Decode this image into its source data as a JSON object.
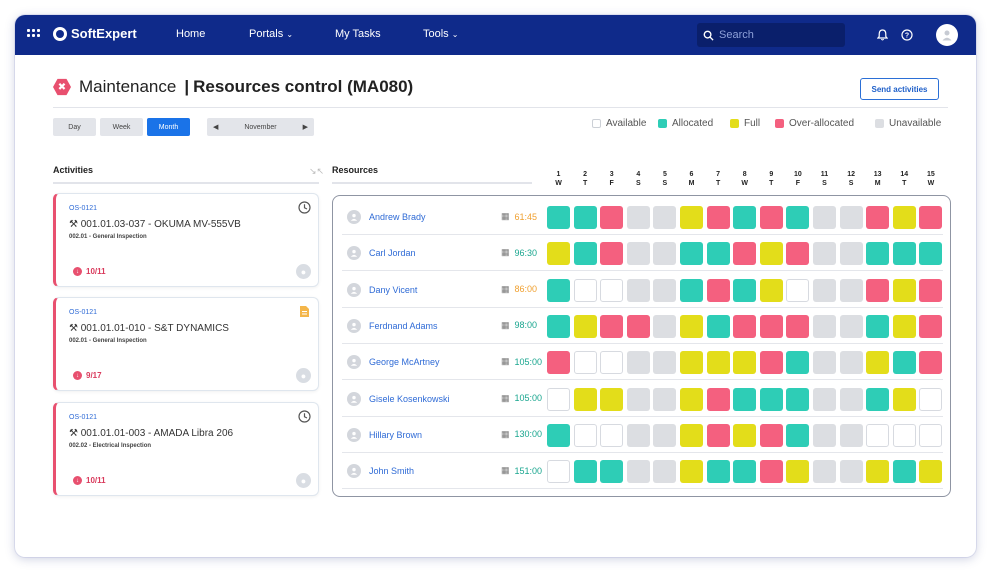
{
  "app": {
    "name": "SoftExpert",
    "nav": [
      {
        "label": "Home",
        "caret": false
      },
      {
        "label": "Portals",
        "caret": true
      },
      {
        "label": "My Tasks",
        "caret": false
      },
      {
        "label": "Tools",
        "caret": true
      }
    ],
    "search_placeholder": "Search"
  },
  "page": {
    "module": "Maintenance",
    "separator": "|",
    "title": "Resources control (MA080)",
    "send_button": "Send activities"
  },
  "view": {
    "segments": [
      {
        "label": "Day",
        "active": false
      },
      {
        "label": "Week",
        "active": false
      },
      {
        "label": "Month",
        "active": true
      }
    ],
    "month": "November"
  },
  "legend": [
    {
      "label": "Available",
      "color": "#ffffff"
    },
    {
      "label": "Allocated",
      "color": "#2ecdb6"
    },
    {
      "label": "Full",
      "color": "#e3dd1a"
    },
    {
      "label": "Over-allocated",
      "color": "#f4607f"
    },
    {
      "label": "Unavailable",
      "color": "#dcdee2"
    }
  ],
  "colors": {
    "A": "#ffffff",
    "G": "#2ecdb6",
    "Y": "#e3dd1a",
    "P": "#f4607f",
    "U": "#dcdee2",
    "hours_orange": "#f0a030",
    "hours_teal": "#1aa68f"
  },
  "activities": {
    "title": "Activities",
    "items": [
      {
        "os": "OS-0121",
        "code": "001.01.03-037 - OKUMA MV-555VB",
        "sub": "002.01 - General Inspection",
        "due": "10/11",
        "status_icon": "clock-icon"
      },
      {
        "os": "OS-0121",
        "code": "001.01.01-010 - S&T DYNAMICS",
        "sub": "002.01 - General Inspection",
        "due": "9/17",
        "status_icon": "document-icon"
      },
      {
        "os": "OS-0121",
        "code": "001.01.01-003 - AMADA Libra 206",
        "sub": "002.02 - Electrical Inspection",
        "due": "10/11",
        "status_icon": "clock-icon"
      }
    ]
  },
  "resources": {
    "title": "Resources",
    "days": [
      {
        "n": "1",
        "d": "W"
      },
      {
        "n": "2",
        "d": "T"
      },
      {
        "n": "3",
        "d": "F"
      },
      {
        "n": "4",
        "d": "S"
      },
      {
        "n": "5",
        "d": "S"
      },
      {
        "n": "6",
        "d": "M"
      },
      {
        "n": "7",
        "d": "T"
      },
      {
        "n": "8",
        "d": "W"
      },
      {
        "n": "9",
        "d": "T"
      },
      {
        "n": "10",
        "d": "F"
      },
      {
        "n": "11",
        "d": "S"
      },
      {
        "n": "12",
        "d": "S"
      },
      {
        "n": "13",
        "d": "M"
      },
      {
        "n": "14",
        "d": "T"
      },
      {
        "n": "15",
        "d": "W"
      }
    ],
    "people": [
      {
        "name": "Andrew Brady",
        "hours": "61:45",
        "hours_status": "orange",
        "cells": [
          "G",
          "G",
          "P",
          "U",
          "U",
          "Y",
          "P",
          "G",
          "P",
          "G",
          "U",
          "U",
          "P",
          "Y",
          "P"
        ]
      },
      {
        "name": "Carl Jordan",
        "hours": "96:30",
        "hours_status": "teal",
        "cells": [
          "Y",
          "G",
          "P",
          "U",
          "U",
          "G",
          "G",
          "P",
          "Y",
          "P",
          "U",
          "U",
          "G",
          "G",
          "G"
        ]
      },
      {
        "name": "Dany Vicent",
        "hours": "86:00",
        "hours_status": "orange",
        "cells": [
          "G",
          "A",
          "A",
          "U",
          "U",
          "G",
          "P",
          "G",
          "Y",
          "A",
          "U",
          "U",
          "P",
          "Y",
          "P"
        ]
      },
      {
        "name": "Ferdnand Adams",
        "hours": "98:00",
        "hours_status": "teal",
        "cells": [
          "G",
          "Y",
          "P",
          "P",
          "U",
          "Y",
          "G",
          "P",
          "P",
          "P",
          "U",
          "U",
          "G",
          "Y",
          "P"
        ]
      },
      {
        "name": "George McArtney",
        "hours": "105:00",
        "hours_status": "teal",
        "cells": [
          "P",
          "A",
          "A",
          "U",
          "U",
          "Y",
          "Y",
          "Y",
          "P",
          "G",
          "U",
          "U",
          "Y",
          "G",
          "P"
        ]
      },
      {
        "name": "Gisele Kosenkowski",
        "hours": "105:00",
        "hours_status": "teal",
        "cells": [
          "A",
          "Y",
          "Y",
          "U",
          "U",
          "Y",
          "P",
          "G",
          "G",
          "G",
          "U",
          "U",
          "G",
          "Y",
          "A"
        ]
      },
      {
        "name": "Hillary Brown",
        "hours": "130:00",
        "hours_status": "teal",
        "cells": [
          "G",
          "A",
          "A",
          "U",
          "U",
          "Y",
          "P",
          "Y",
          "P",
          "G",
          "U",
          "U",
          "A",
          "A",
          "A"
        ]
      },
      {
        "name": "John Smith",
        "hours": "151:00",
        "hours_status": "teal",
        "cells": [
          "A",
          "G",
          "G",
          "U",
          "U",
          "Y",
          "G",
          "G",
          "P",
          "Y",
          "U",
          "U",
          "Y",
          "G",
          "Y"
        ]
      }
    ]
  }
}
